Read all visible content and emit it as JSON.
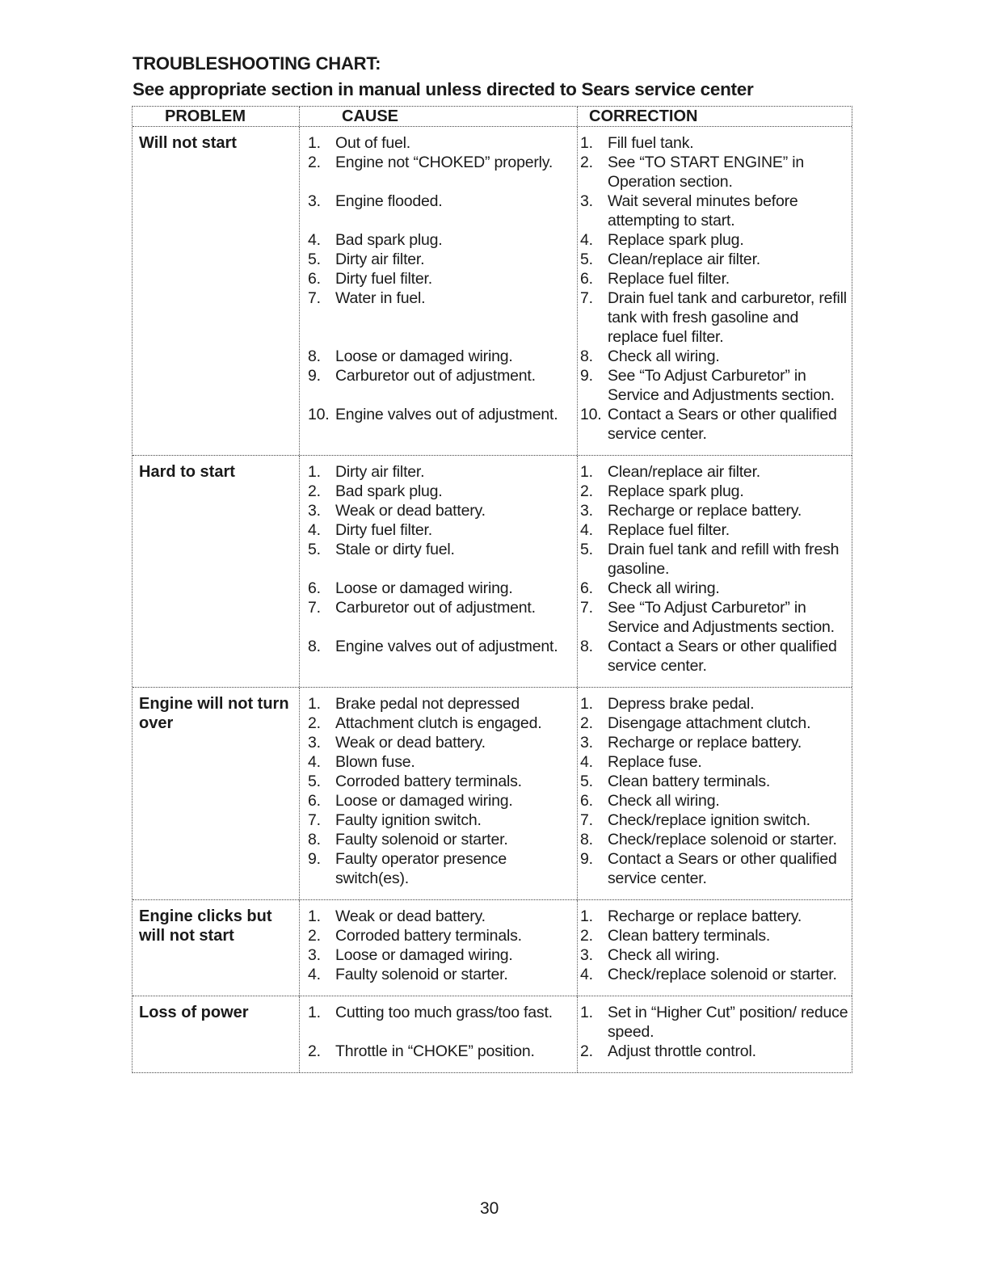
{
  "title": "TROUBLESHOOTING CHART:",
  "subtitle": "See appropriate section in manual unless directed to Sears service center",
  "headers": {
    "problem": "PROBLEM",
    "cause": "CAUSE",
    "correction": "CORRECTION"
  },
  "sections": [
    {
      "problem": "Will not start",
      "pairs": [
        {
          "n": "1.",
          "cause": "Out of fuel.",
          "correction": "Fill fuel tank."
        },
        {
          "n": "2.",
          "cause": "Engine not “CHOKED” properly.",
          "correction": "See “TO START ENGINE” in Operation section."
        },
        {
          "n": "3.",
          "cause": "Engine flooded.",
          "correction": "Wait several minutes before attempting to start."
        },
        {
          "n": "4.",
          "cause": "Bad spark plug.",
          "correction": "Replace spark plug."
        },
        {
          "n": "5.",
          "cause": "Dirty air filter.",
          "correction": "Clean/replace air filter."
        },
        {
          "n": "6.",
          "cause": "Dirty fuel filter.",
          "correction": "Replace fuel filter."
        },
        {
          "n": "7.",
          "cause": "Water in fuel.",
          "correction": "Drain fuel tank and carburetor, refill tank with fresh gasoline and replace fuel filter."
        },
        {
          "n": "8.",
          "cause": "Loose or damaged wiring.",
          "correction": "Check all wiring."
        },
        {
          "n": "9.",
          "cause": "Carburetor out of adjustment.",
          "correction": "See “To Adjust Carburetor” in Service and Adjustments section."
        },
        {
          "n": "10.",
          "cause": "Engine valves out of adjustment.",
          "correction": "Contact a Sears or other qualified service center."
        }
      ]
    },
    {
      "problem": "Hard to start",
      "pairs": [
        {
          "n": "1.",
          "cause": "Dirty air filter.",
          "correction": "Clean/replace air filter."
        },
        {
          "n": "2.",
          "cause": "Bad spark plug.",
          "correction": "Replace spark plug."
        },
        {
          "n": "3.",
          "cause": "Weak or dead battery.",
          "correction": "Recharge or replace battery."
        },
        {
          "n": "4.",
          "cause": "Dirty fuel filter.",
          "correction": "Replace fuel filter."
        },
        {
          "n": "5.",
          "cause": "Stale or dirty fuel.",
          "correction": "Drain fuel tank and refill with fresh gasoline."
        },
        {
          "n": "6.",
          "cause": "Loose or damaged wiring.",
          "correction": "Check all wiring."
        },
        {
          "n": "7.",
          "cause": "Carburetor out of adjustment.",
          "correction": "See “To Adjust Carburetor” in Service and Adjustments section."
        },
        {
          "n": "8.",
          "cause": "Engine valves out of adjustment.",
          "correction": "Contact a Sears or other qualified service center."
        }
      ]
    },
    {
      "problem": "Engine will not turn over",
      "pairs": [
        {
          "n": "1.",
          "cause": "Brake pedal not depressed",
          "correction": "Depress brake pedal."
        },
        {
          "n": "2.",
          "cause": "Attachment clutch is engaged.",
          "correction": "Disengage attachment clutch."
        },
        {
          "n": "3.",
          "cause": "Weak or dead battery.",
          "correction": "Recharge or replace battery."
        },
        {
          "n": "4.",
          "cause": "Blown fuse.",
          "correction": "Replace fuse."
        },
        {
          "n": "5.",
          "cause": "Corroded battery terminals.",
          "correction": "Clean battery terminals."
        },
        {
          "n": "6.",
          "cause": "Loose or damaged wiring.",
          "correction": "Check all wiring."
        },
        {
          "n": "7.",
          "cause": "Faulty ignition switch.",
          "correction": "Check/replace ignition switch."
        },
        {
          "n": "8.",
          "cause": "Faulty solenoid or starter.",
          "correction": "Check/replace solenoid or starter."
        },
        {
          "n": "9.",
          "cause": "Faulty operator presence switch(es).",
          "correction": "Contact a Sears or other qualified service center."
        }
      ]
    },
    {
      "problem": "Engine clicks but will not start",
      "pairs": [
        {
          "n": "1.",
          "cause": "Weak or dead battery.",
          "correction": "Recharge or replace battery."
        },
        {
          "n": "2.",
          "cause": "Corroded battery terminals.",
          "correction": "Clean battery terminals."
        },
        {
          "n": "3.",
          "cause": "Loose or damaged wiring.",
          "correction": "Check all wiring."
        },
        {
          "n": "4.",
          "cause": "Faulty solenoid or starter.",
          "correction": "Check/replace solenoid or starter."
        }
      ]
    },
    {
      "problem": "Loss of power",
      "pairs": [
        {
          "n": "1.",
          "cause": "Cutting too much grass/too fast.",
          "correction": "Set in “Higher Cut” position/ reduce speed."
        },
        {
          "n": "2.",
          "cause": "Throttle in “CHOKE” position.",
          "correction": "Adjust throttle control."
        }
      ]
    }
  ],
  "page_number": "30"
}
